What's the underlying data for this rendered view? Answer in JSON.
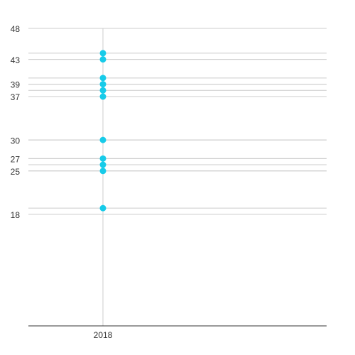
{
  "chart_data": {
    "type": "dot",
    "categories": [
      "2018",
      null
    ],
    "values": [
      [
        44,
        43,
        40,
        39,
        38,
        37,
        30,
        27,
        26,
        25,
        19
      ],
      null
    ],
    "color": "#17cbe9",
    "ylim": [
      0,
      48
    ],
    "yticks": [
      48,
      43,
      39,
      37,
      30,
      27,
      25,
      18
    ],
    "grid": true,
    "value_gridlines": true
  }
}
